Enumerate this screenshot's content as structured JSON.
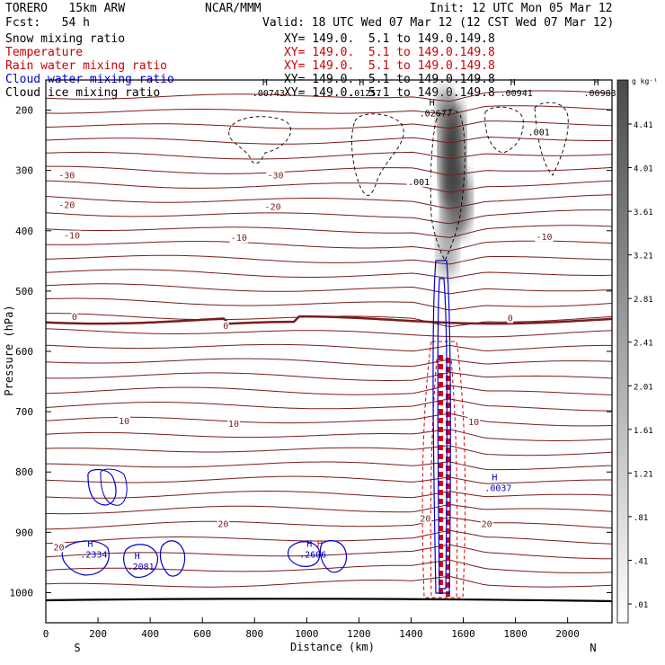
{
  "header": {
    "model": "TORERO   15km ARW",
    "center": "NCAR/MMM",
    "init": "Init: 12 UTC Mon 05 Mar 12",
    "fcst": "Fcst:   54 h",
    "valid": "Valid: 18 UTC Wed 07 Mar 12 (12 CST Wed 07 Mar 12)"
  },
  "fields": [
    {
      "name": "Snow mixing ratio",
      "xy": "XY= 149.0.  5.1 to 149.0.149.8",
      "color": "#000000",
      "xyColor": "#000000"
    },
    {
      "name": "Temperature",
      "xy": "XY= 149.0.  5.1 to 149.0.149.8",
      "color": "#cc0000",
      "xyColor": "#cc0000"
    },
    {
      "name": "Rain water mixing ratio",
      "xy": "XY= 149.0.  5.1 to 149.0.149.8",
      "color": "#cc0000",
      "xyColor": "#cc0000"
    },
    {
      "name": "Cloud water mixing ratio",
      "xy": "XY= 149.0.  5.1 to 149.0.149.8",
      "color": "#0000cc",
      "xyColor": "#000000"
    },
    {
      "name": "Cloud ice mixing ratio",
      "xy": "XY= 149.0.  5.1 to 149.0.149.8",
      "color": "#000000",
      "xyColor": "#000000"
    }
  ],
  "colorbar": {
    "unit": "g kg⁻¹",
    "ticks": [
      "4.41",
      "4.01",
      "3.61",
      "3.21",
      "2.81",
      "2.41",
      "2.01",
      "1.61",
      "1.21",
      ".81",
      ".41",
      ".01"
    ]
  },
  "chart_data": {
    "type": "cross-section contour",
    "xlabel": "Distance (km)",
    "ylabel": "Pressure (hPa)",
    "xlim": [
      0,
      2170
    ],
    "ylim": [
      150,
      1050
    ],
    "x_ticks": [
      0,
      200,
      400,
      600,
      800,
      1000,
      1200,
      1400,
      1600,
      1800,
      2000
    ],
    "y_ticks": [
      200,
      300,
      400,
      500,
      600,
      700,
      800,
      900,
      1000
    ],
    "x_ends": {
      "left": "S",
      "right": "N"
    },
    "temperature_contour_labels": [
      {
        "text": "-30",
        "x": 80,
        "p": 313
      },
      {
        "text": "-30",
        "x": 880,
        "p": 313
      },
      {
        "text": "-20",
        "x": 80,
        "p": 362
      },
      {
        "text": "-20",
        "x": 870,
        "p": 365
      },
      {
        "text": "-10",
        "x": 100,
        "p": 413
      },
      {
        "text": "-10",
        "x": 740,
        "p": 417
      },
      {
        "text": "-10",
        "x": 1910,
        "p": 415
      },
      {
        "text": "0",
        "x": 110,
        "p": 548
      },
      {
        "text": "0",
        "x": 690,
        "p": 563
      },
      {
        "text": "0",
        "x": 1780,
        "p": 550
      },
      {
        "text": "10",
        "x": 300,
        "p": 721
      },
      {
        "text": "10",
        "x": 720,
        "p": 725
      },
      {
        "text": "10",
        "x": 1640,
        "p": 722
      },
      {
        "text": "20",
        "x": 680,
        "p": 891
      },
      {
        "text": "20",
        "x": 1690,
        "p": 891
      },
      {
        "text": "20",
        "x": 50,
        "p": 930
      },
      {
        "text": "20",
        "x": 1455,
        "p": 882
      }
    ],
    "snow_maxima": [
      {
        "label": "H",
        "value": ".00743",
        "x": 840,
        "p": 177
      },
      {
        "label": "H",
        "value": ".01257",
        "x": 1210,
        "p": 177
      },
      {
        "label": "H",
        "value": ".02677",
        "x": 1480,
        "p": 210
      },
      {
        "label": "H",
        "value": ".00941",
        "x": 1790,
        "p": 177
      },
      {
        "label": "H",
        "value": ".00983",
        "x": 2110,
        "p": 177
      }
    ],
    "snow_contour_labels": [
      {
        "text": ".001",
        "x": 1430,
        "p": 324
      },
      {
        "text": ".001",
        "x": 1890,
        "p": 242
      }
    ],
    "cloud_water_maxima": [
      {
        "label": "H",
        "value": ".2334",
        "x": 170,
        "p": 942
      },
      {
        "label": "H",
        "value": ".2081",
        "x": 350,
        "p": 962
      },
      {
        "label": "H",
        "value": ".2606",
        "x": 1010,
        "p": 942
      },
      {
        "label": "H",
        "value": ".0037",
        "x": 1720,
        "p": 832
      }
    ],
    "rain_maxima": [
      {
        "label": "H",
        "value": ".2606",
        "x": 1050,
        "p": 942
      }
    ],
    "shading_max_gkg": 4.41
  }
}
